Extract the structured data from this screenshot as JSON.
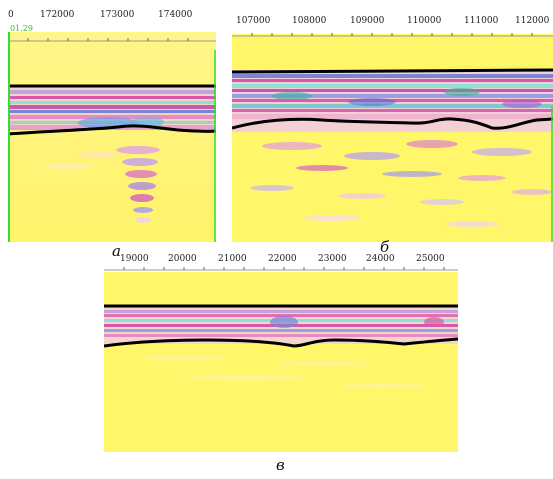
{
  "panel_a": {
    "ticks": [
      "0",
      "172000",
      "173000",
      "174000"
    ],
    "corner_label": "01.29",
    "caption": "а"
  },
  "panel_b": {
    "ticks": [
      "107000",
      "108000",
      "109000",
      "110000",
      "111000",
      "112000"
    ],
    "caption": "б"
  },
  "panel_c": {
    "ticks": [
      "19000",
      "20000",
      "21000",
      "22000",
      "23000",
      "24000",
      "25000"
    ],
    "caption": "в"
  },
  "colors": {
    "background": "#fff96a",
    "horizon_line": "#000000",
    "frame_green": "#33dd33",
    "band_magenta": "#d65aa8",
    "band_blue": "#7b84d8",
    "band_cyan": "#8fe0d8"
  }
}
